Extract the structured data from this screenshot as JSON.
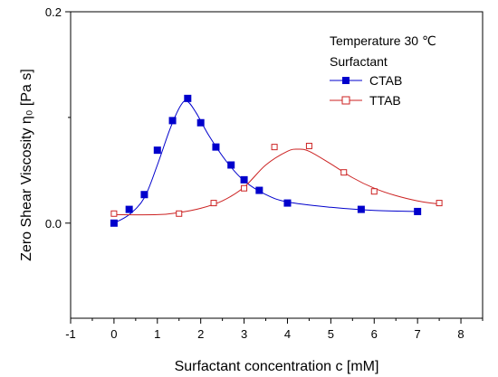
{
  "chart_data": {
    "type": "scatter",
    "xlabel": "Surfactant concentration c [mM]",
    "ylabel": "Zero Shear Viscosity η₀ [Pa s]",
    "xlim": [
      -1,
      8.5
    ],
    "ylim": [
      -0.09,
      0.2
    ],
    "x_ticks": [
      "-1",
      "0",
      "1",
      "2",
      "3",
      "4",
      "5",
      "6",
      "7",
      "8"
    ],
    "y_ticks": [
      "0.0",
      "0.2"
    ],
    "x_tick_values": [
      -1,
      0,
      1,
      2,
      3,
      4,
      5,
      6,
      7,
      8
    ],
    "y_tick_values": [
      0.0,
      0.2
    ],
    "grid": false,
    "legend": {
      "position": "top-right",
      "lines": [
        "Temperature 30 ℃",
        "Surfactant"
      ]
    },
    "series": [
      {
        "name": "CTAB",
        "marker": "filled-square",
        "color": "#0000cc",
        "points": [
          [
            0,
            0.0
          ],
          [
            0.35,
            0.013
          ],
          [
            0.7,
            0.027
          ],
          [
            1.0,
            0.069
          ],
          [
            1.35,
            0.097
          ],
          [
            1.7,
            0.118
          ],
          [
            2.0,
            0.095
          ],
          [
            2.35,
            0.072
          ],
          [
            2.7,
            0.055
          ],
          [
            3.0,
            0.041
          ],
          [
            3.35,
            0.031
          ],
          [
            4.0,
            0.019
          ],
          [
            5.7,
            0.013
          ],
          [
            7.0,
            0.011
          ]
        ],
        "fit": [
          [
            0,
            0.0
          ],
          [
            0.35,
            0.008
          ],
          [
            0.7,
            0.024
          ],
          [
            1.0,
            0.055
          ],
          [
            1.3,
            0.09
          ],
          [
            1.55,
            0.112
          ],
          [
            1.7,
            0.115
          ],
          [
            1.9,
            0.104
          ],
          [
            2.2,
            0.082
          ],
          [
            2.6,
            0.058
          ],
          [
            3.0,
            0.04
          ],
          [
            3.5,
            0.027
          ],
          [
            4.0,
            0.02
          ],
          [
            5.0,
            0.015
          ],
          [
            6.0,
            0.012
          ],
          [
            7.0,
            0.011
          ]
        ]
      },
      {
        "name": "TTAB",
        "marker": "open-square",
        "color": "#cc2222",
        "points": [
          [
            0,
            0.009
          ],
          [
            1.5,
            0.009
          ],
          [
            2.3,
            0.019
          ],
          [
            3.0,
            0.033
          ],
          [
            3.7,
            0.072
          ],
          [
            4.5,
            0.073
          ],
          [
            5.3,
            0.048
          ],
          [
            6.0,
            0.03
          ],
          [
            7.5,
            0.019
          ]
        ],
        "fit": [
          [
            0,
            0.008
          ],
          [
            1.0,
            0.008
          ],
          [
            1.5,
            0.01
          ],
          [
            2.0,
            0.014
          ],
          [
            2.5,
            0.021
          ],
          [
            3.0,
            0.034
          ],
          [
            3.5,
            0.055
          ],
          [
            4.0,
            0.068
          ],
          [
            4.25,
            0.07
          ],
          [
            4.5,
            0.068
          ],
          [
            5.0,
            0.056
          ],
          [
            5.5,
            0.043
          ],
          [
            6.0,
            0.033
          ],
          [
            6.5,
            0.026
          ],
          [
            7.0,
            0.021
          ],
          [
            7.5,
            0.018
          ]
        ]
      }
    ]
  }
}
